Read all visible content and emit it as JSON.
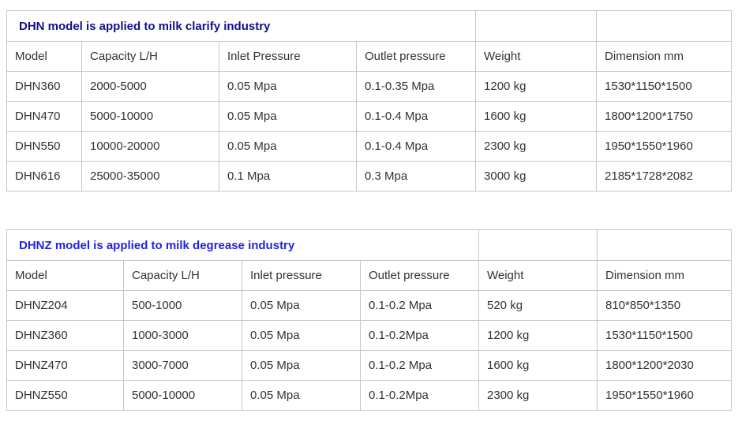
{
  "tables": [
    {
      "title": "DHN model is applied to milk clarify industry",
      "title_color": "#10108c",
      "columns": [
        "Model",
        "Capacity L/H",
        "Inlet Pressure",
        "Outlet pressure",
        "Weight",
        "Dimension mm"
      ],
      "rows": [
        [
          "DHN360",
          "2000-5000",
          "0.05 Mpa",
          "0.1-0.35 Mpa",
          "1200 kg",
          "1530*1150*1500"
        ],
        [
          "DHN470",
          "5000-10000",
          "0.05 Mpa",
          "0.1-0.4 Mpa",
          "1600 kg",
          "1800*1200*1750"
        ],
        [
          "DHN550",
          "10000-20000",
          "0.05 Mpa",
          "0.1-0.4 Mpa",
          "2300 kg",
          "1950*1550*1960"
        ],
        [
          "DHN616",
          "25000-35000",
          "0.1 Mpa",
          "0.3 Mpa",
          "3000 kg",
          "2185*1728*2082"
        ]
      ]
    },
    {
      "title": "DHNZ model is applied to milk degrease industry",
      "title_color": "#2323dd",
      "columns": [
        "Model",
        "Capacity L/H",
        "Inlet pressure",
        "Outlet pressure",
        "Weight",
        "Dimension mm"
      ],
      "rows": [
        [
          "DHNZ204",
          "500-1000",
          "0.05 Mpa",
          "0.1-0.2 Mpa",
          "520 kg",
          "810*850*1350"
        ],
        [
          "DHNZ360",
          "1000-3000",
          "0.05 Mpa",
          "0.1-0.2Mpa",
          "1200 kg",
          "1530*1150*1500"
        ],
        [
          "DHNZ470",
          "3000-7000",
          "0.05 Mpa",
          "0.1-0.2 Mpa",
          "1600 kg",
          "1800*1200*2030"
        ],
        [
          "DHNZ550",
          "5000-10000",
          "0.05 Mpa",
          "0.1-0.2Mpa",
          "2300 kg",
          "1950*1550*1960"
        ]
      ]
    }
  ],
  "style": {
    "border_color": "#c6c6c6",
    "text_color": "#333333",
    "background": "#ffffff"
  }
}
